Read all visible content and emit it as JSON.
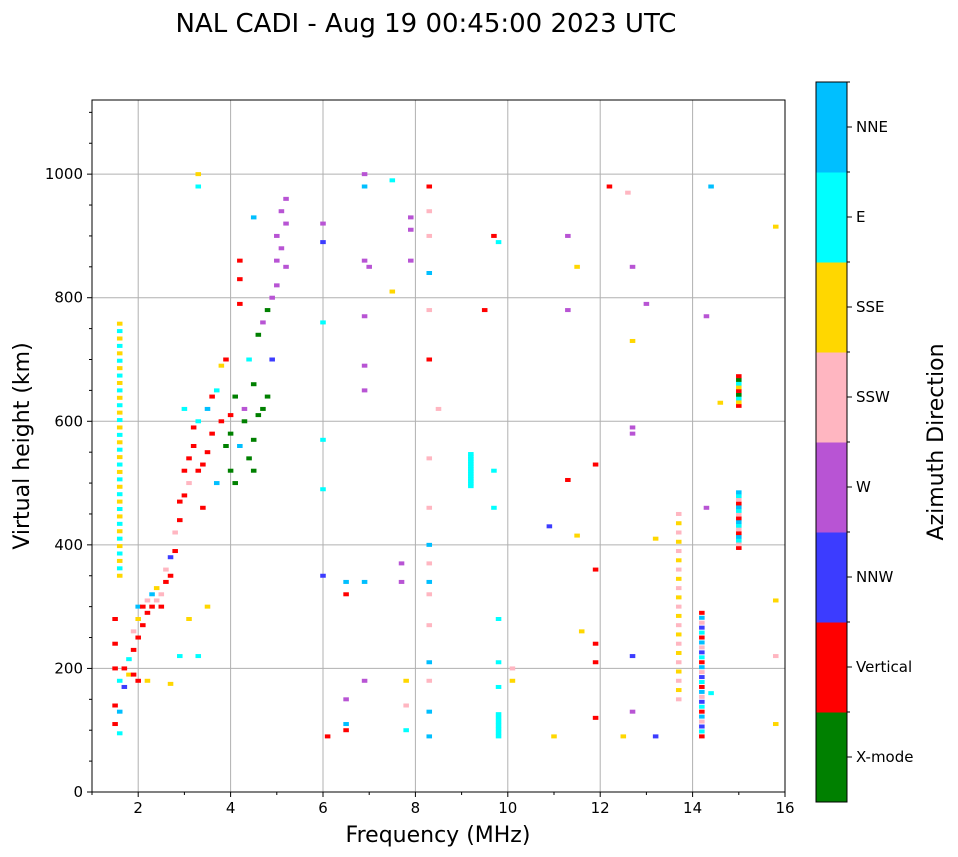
{
  "chart_data": {
    "type": "scatter",
    "title": "NAL CADI - Aug 19 00:45:00 2023 UTC",
    "xlabel": "Frequency (MHz)",
    "ylabel": "Virtual height (km)",
    "xlim": [
      1,
      16
    ],
    "ylim": [
      0,
      1120
    ],
    "xticks": [
      2,
      4,
      6,
      8,
      10,
      12,
      14,
      16
    ],
    "yticks": [
      0,
      200,
      400,
      600,
      800,
      1000
    ],
    "grid": true,
    "colorbar": {
      "label": "Azimuth Direction",
      "position": "right",
      "categories": [
        {
          "name": "X-mode",
          "color": "#008000"
        },
        {
          "name": "Vertical",
          "color": "#ff0000"
        },
        {
          "name": "NNW",
          "color": "#3c3cff"
        },
        {
          "name": "W",
          "color": "#b854d4"
        },
        {
          "name": "SSW",
          "color": "#ffb6c1"
        },
        {
          "name": "SSE",
          "color": "#ffd700"
        },
        {
          "name": "E",
          "color": "#00ffff"
        },
        {
          "name": "NNE",
          "color": "#00bfff"
        }
      ]
    },
    "point_format": "[frequency_MHz, height_km, category_index]",
    "points": [
      [
        1.5,
        110,
        1
      ],
      [
        1.5,
        140,
        1
      ],
      [
        1.5,
        200,
        1
      ],
      [
        1.5,
        240,
        1
      ],
      [
        1.5,
        280,
        1
      ],
      [
        1.6,
        95,
        6
      ],
      [
        1.6,
        130,
        7
      ],
      [
        1.6,
        180,
        6
      ],
      [
        1.7,
        170,
        2
      ],
      [
        1.7,
        200,
        1
      ],
      [
        1.8,
        190,
        5
      ],
      [
        1.8,
        215,
        6
      ],
      [
        1.9,
        230,
        1
      ],
      [
        1.9,
        260,
        4
      ],
      [
        1.9,
        190,
        1
      ],
      [
        2.0,
        250,
        1
      ],
      [
        2.0,
        280,
        5
      ],
      [
        2.0,
        300,
        7
      ],
      [
        2.0,
        180,
        1
      ],
      [
        2.1,
        270,
        1
      ],
      [
        2.1,
        300,
        1
      ],
      [
        2.2,
        290,
        1
      ],
      [
        2.2,
        310,
        4
      ],
      [
        2.3,
        300,
        1
      ],
      [
        2.3,
        320,
        7
      ],
      [
        2.4,
        310,
        4
      ],
      [
        2.4,
        330,
        5
      ],
      [
        2.5,
        320,
        4
      ],
      [
        2.5,
        300,
        1
      ],
      [
        2.6,
        340,
        1
      ],
      [
        2.6,
        360,
        4
      ],
      [
        2.7,
        350,
        1
      ],
      [
        2.7,
        380,
        2
      ],
      [
        2.8,
        390,
        1
      ],
      [
        2.8,
        420,
        4
      ],
      [
        2.9,
        440,
        1
      ],
      [
        2.9,
        470,
        1
      ],
      [
        3.0,
        480,
        1
      ],
      [
        3.0,
        520,
        1
      ],
      [
        3.0,
        620,
        6
      ],
      [
        3.1,
        540,
        1
      ],
      [
        3.1,
        500,
        4
      ],
      [
        3.2,
        560,
        1
      ],
      [
        3.2,
        590,
        1
      ],
      [
        3.3,
        600,
        6
      ],
      [
        3.3,
        520,
        1
      ],
      [
        3.4,
        530,
        1
      ],
      [
        3.4,
        460,
        1
      ],
      [
        3.5,
        550,
        1
      ],
      [
        3.5,
        620,
        7
      ],
      [
        3.6,
        580,
        1
      ],
      [
        3.6,
        640,
        1
      ],
      [
        3.7,
        650,
        6
      ],
      [
        3.7,
        500,
        7
      ],
      [
        3.8,
        690,
        5
      ],
      [
        3.8,
        600,
        1
      ],
      [
        3.9,
        700,
        1
      ],
      [
        3.9,
        560,
        0
      ],
      [
        4.0,
        580,
        0
      ],
      [
        4.0,
        610,
        1
      ],
      [
        4.0,
        520,
        0
      ],
      [
        4.1,
        500,
        0
      ],
      [
        4.1,
        640,
        0
      ],
      [
        4.2,
        860,
        1
      ],
      [
        4.2,
        830,
        1
      ],
      [
        4.2,
        560,
        7
      ],
      [
        4.3,
        600,
        0
      ],
      [
        4.3,
        620,
        3
      ],
      [
        4.4,
        540,
        0
      ],
      [
        4.4,
        700,
        6
      ],
      [
        4.5,
        570,
        0
      ],
      [
        4.5,
        520,
        0
      ],
      [
        4.5,
        660,
        0
      ],
      [
        4.6,
        610,
        0
      ],
      [
        4.6,
        740,
        0
      ],
      [
        4.7,
        620,
        0
      ],
      [
        4.7,
        760,
        3
      ],
      [
        4.8,
        640,
        0
      ],
      [
        4.8,
        780,
        0
      ],
      [
        4.9,
        800,
        3
      ],
      [
        4.9,
        700,
        2
      ],
      [
        5.0,
        820,
        3
      ],
      [
        5.0,
        860,
        3
      ],
      [
        5.0,
        900,
        3
      ],
      [
        5.1,
        880,
        3
      ],
      [
        5.1,
        940,
        3
      ],
      [
        5.2,
        850,
        3
      ],
      [
        5.2,
        920,
        3
      ],
      [
        5.2,
        960,
        3
      ],
      [
        4.5,
        930,
        7
      ],
      [
        4.2,
        790,
        1
      ],
      [
        3.3,
        1000,
        5
      ],
      [
        3.3,
        980,
        6
      ],
      [
        3.1,
        280,
        5
      ],
      [
        3.3,
        220,
        6
      ],
      [
        2.9,
        220,
        6
      ],
      [
        3.5,
        300,
        5
      ],
      [
        2.2,
        180,
        5
      ],
      [
        2.7,
        175,
        5
      ],
      [
        6.0,
        920,
        3
      ],
      [
        6.0,
        890,
        2
      ],
      [
        6.0,
        760,
        6
      ],
      [
        6.0,
        570,
        6
      ],
      [
        6.0,
        490,
        6
      ],
      [
        6.0,
        350,
        2
      ],
      [
        6.1,
        90,
        1
      ],
      [
        6.5,
        340,
        7
      ],
      [
        6.5,
        320,
        1
      ],
      [
        6.5,
        110,
        7
      ],
      [
        6.5,
        100,
        1
      ],
      [
        6.5,
        150,
        3
      ],
      [
        6.9,
        1000,
        3
      ],
      [
        6.9,
        980,
        7
      ],
      [
        6.9,
        860,
        3
      ],
      [
        6.9,
        770,
        3
      ],
      [
        6.9,
        690,
        3
      ],
      [
        6.9,
        650,
        3
      ],
      [
        6.9,
        340,
        7
      ],
      [
        6.9,
        180,
        3
      ],
      [
        7.0,
        850,
        3
      ],
      [
        7.5,
        990,
        6
      ],
      [
        7.5,
        810,
        5
      ],
      [
        7.7,
        370,
        3
      ],
      [
        7.7,
        340,
        3
      ],
      [
        7.8,
        180,
        5
      ],
      [
        7.8,
        140,
        4
      ],
      [
        7.8,
        100,
        6
      ],
      [
        7.9,
        930,
        3
      ],
      [
        7.9,
        910,
        3
      ],
      [
        7.9,
        860,
        3
      ],
      [
        8.3,
        980,
        1
      ],
      [
        8.3,
        940,
        4
      ],
      [
        8.3,
        900,
        4
      ],
      [
        8.3,
        840,
        7
      ],
      [
        8.3,
        780,
        4
      ],
      [
        8.3,
        700,
        1
      ],
      [
        8.3,
        540,
        4
      ],
      [
        8.3,
        460,
        4
      ],
      [
        8.3,
        400,
        7
      ],
      [
        8.3,
        370,
        4
      ],
      [
        8.3,
        340,
        7
      ],
      [
        8.3,
        320,
        4
      ],
      [
        8.3,
        270,
        4
      ],
      [
        8.3,
        210,
        7
      ],
      [
        8.3,
        180,
        4
      ],
      [
        8.3,
        130,
        7
      ],
      [
        8.3,
        90,
        7
      ],
      [
        8.5,
        620,
        4
      ],
      [
        9.5,
        780,
        1
      ],
      [
        9.7,
        900,
        1
      ],
      [
        9.8,
        890,
        6
      ],
      [
        9.7,
        520,
        6
      ],
      [
        9.7,
        460,
        6
      ],
      [
        9.8,
        280,
        6
      ],
      [
        9.8,
        210,
        6
      ],
      [
        9.8,
        170,
        6
      ],
      [
        10.1,
        200,
        4
      ],
      [
        10.1,
        180,
        5
      ],
      [
        10.9,
        430,
        2
      ],
      [
        11.0,
        90,
        5
      ],
      [
        11.3,
        900,
        3
      ],
      [
        11.3,
        780,
        3
      ],
      [
        11.3,
        505,
        1
      ],
      [
        11.5,
        850,
        5
      ],
      [
        11.5,
        415,
        5
      ],
      [
        11.6,
        260,
        5
      ],
      [
        11.9,
        530,
        1
      ],
      [
        11.9,
        360,
        1
      ],
      [
        11.9,
        240,
        1
      ],
      [
        11.9,
        210,
        1
      ],
      [
        11.9,
        120,
        1
      ],
      [
        12.2,
        980,
        1
      ],
      [
        12.6,
        970,
        4
      ],
      [
        12.5,
        90,
        5
      ],
      [
        12.7,
        850,
        3
      ],
      [
        12.7,
        730,
        5
      ],
      [
        12.7,
        590,
        3
      ],
      [
        12.7,
        580,
        3
      ],
      [
        12.7,
        220,
        2
      ],
      [
        12.7,
        130,
        3
      ],
      [
        13.0,
        790,
        3
      ],
      [
        13.2,
        90,
        2
      ],
      [
        13.2,
        410,
        5
      ],
      [
        14.3,
        770,
        3
      ],
      [
        14.3,
        460,
        3
      ],
      [
        14.4,
        980,
        7
      ],
      [
        14.4,
        160,
        6
      ],
      [
        14.6,
        630,
        5
      ],
      [
        15.8,
        915,
        5
      ],
      [
        15.8,
        310,
        5
      ],
      [
        15.8,
        220,
        4
      ],
      [
        15.8,
        110,
        5
      ]
    ],
    "column_format": "[frequency_MHz, height_start_km, height_end_km, step_km, category_indices]",
    "columns": [
      [
        1.6,
        350,
        760,
        12,
        [
          5,
          6
        ]
      ],
      [
        14.2,
        90,
        290,
        8,
        [
          1,
          6,
          2,
          4,
          7
        ]
      ],
      [
        15.0,
        395,
        485,
        6,
        [
          1,
          4,
          6,
          7
        ]
      ],
      [
        15.0,
        625,
        675,
        6,
        [
          1,
          5,
          6,
          0
        ]
      ],
      [
        13.7,
        150,
        455,
        15,
        [
          4,
          5
        ]
      ],
      [
        9.2,
        495,
        550,
        4,
        [
          6
        ]
      ],
      [
        9.8,
        90,
        130,
        6,
        [
          6
        ]
      ]
    ]
  }
}
